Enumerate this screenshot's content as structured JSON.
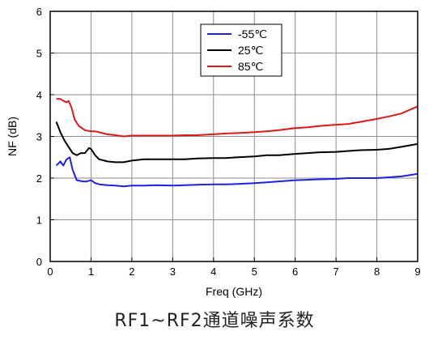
{
  "chart_data": {
    "type": "line",
    "title": "",
    "xlabel": "Freq (GHz)",
    "ylabel": "NF (dB)",
    "xlim": [
      0,
      9
    ],
    "ylim": [
      0,
      6
    ],
    "xticks": [
      "0",
      "1",
      "2",
      "3",
      "4",
      "5",
      "6",
      "7",
      "8",
      "9"
    ],
    "yticks": [
      "0",
      "1",
      "2",
      "3",
      "4",
      "5",
      "6"
    ],
    "grid": true,
    "legend_position": "top-center",
    "series": [
      {
        "name": "-55℃",
        "color": "#1f1fe6",
        "x": [
          0.15,
          0.25,
          0.32,
          0.4,
          0.48,
          0.55,
          0.65,
          0.8,
          0.9,
          1.0,
          1.1,
          1.2,
          1.4,
          1.6,
          1.8,
          2.0,
          2.3,
          2.6,
          3.0,
          3.3,
          3.6,
          4.0,
          4.3,
          4.6,
          5.0,
          5.3,
          5.6,
          6.0,
          6.3,
          6.6,
          7.0,
          7.3,
          7.6,
          8.0,
          8.3,
          8.6,
          9.0
        ],
        "y": [
          2.3,
          2.4,
          2.3,
          2.45,
          2.5,
          2.2,
          1.95,
          1.92,
          1.92,
          1.95,
          1.88,
          1.85,
          1.83,
          1.82,
          1.8,
          1.82,
          1.82,
          1.83,
          1.82,
          1.83,
          1.84,
          1.85,
          1.85,
          1.86,
          1.88,
          1.9,
          1.92,
          1.95,
          1.96,
          1.97,
          1.98,
          2.0,
          2.0,
          2.0,
          2.02,
          2.04,
          2.1
        ]
      },
      {
        "name": "25℃",
        "color": "#000000",
        "x": [
          0.15,
          0.25,
          0.35,
          0.45,
          0.55,
          0.65,
          0.75,
          0.85,
          0.95,
          1.0,
          1.1,
          1.2,
          1.4,
          1.6,
          1.8,
          2.0,
          2.3,
          2.6,
          3.0,
          3.3,
          3.6,
          4.0,
          4.3,
          4.6,
          5.0,
          5.3,
          5.6,
          6.0,
          6.3,
          6.6,
          7.0,
          7.3,
          7.6,
          8.0,
          8.3,
          8.6,
          9.0
        ],
        "y": [
          3.35,
          3.1,
          2.9,
          2.75,
          2.6,
          2.55,
          2.6,
          2.6,
          2.72,
          2.7,
          2.55,
          2.45,
          2.4,
          2.38,
          2.38,
          2.42,
          2.45,
          2.45,
          2.45,
          2.45,
          2.47,
          2.48,
          2.48,
          2.5,
          2.52,
          2.55,
          2.55,
          2.58,
          2.6,
          2.62,
          2.63,
          2.65,
          2.67,
          2.68,
          2.7,
          2.75,
          2.82
        ]
      },
      {
        "name": "85℃",
        "color": "#e01818",
        "x": [
          0.15,
          0.25,
          0.33,
          0.4,
          0.45,
          0.52,
          0.6,
          0.7,
          0.85,
          1.0,
          1.1,
          1.2,
          1.4,
          1.6,
          1.8,
          2.0,
          2.3,
          2.6,
          3.0,
          3.3,
          3.6,
          4.0,
          4.3,
          4.6,
          5.0,
          5.3,
          5.6,
          6.0,
          6.3,
          6.6,
          7.0,
          7.3,
          7.6,
          8.0,
          8.3,
          8.6,
          9.0
        ],
        "y": [
          3.9,
          3.9,
          3.85,
          3.82,
          3.85,
          3.7,
          3.4,
          3.25,
          3.15,
          3.12,
          3.12,
          3.1,
          3.05,
          3.03,
          3.0,
          3.02,
          3.02,
          3.02,
          3.02,
          3.03,
          3.03,
          3.05,
          3.07,
          3.08,
          3.1,
          3.12,
          3.15,
          3.2,
          3.22,
          3.25,
          3.28,
          3.3,
          3.35,
          3.42,
          3.48,
          3.55,
          3.72
        ]
      }
    ]
  },
  "caption": "RF1~RF2通道噪声系数"
}
